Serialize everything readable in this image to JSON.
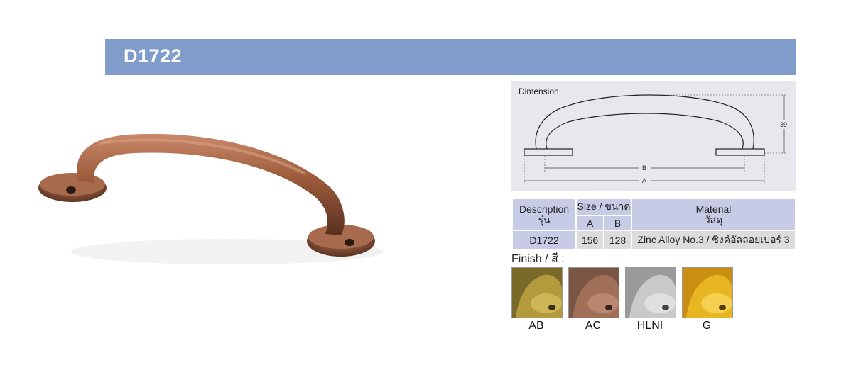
{
  "header": {
    "model": "D1722"
  },
  "dimension": {
    "label": "Dimension",
    "a_label": "A",
    "b_label": "B",
    "height_value": "39"
  },
  "table": {
    "description_header_en": "Description",
    "description_header_th": "รุ่น",
    "size_header": "Size / ขนาด",
    "col_a": "A",
    "col_b": "B",
    "material_header_en": "Material",
    "material_header_th": "วัสดุ",
    "rows": [
      {
        "model": "D1722",
        "a": "156",
        "b": "128",
        "material": "Zinc Alloy No.3 / ซิงค์อัลลอยเบอร์ 3"
      }
    ]
  },
  "finish": {
    "title": "Finish / สี :",
    "items": [
      {
        "code": "AB",
        "color": "#b39a3c"
      },
      {
        "code": "AC",
        "color": "#a06f58"
      },
      {
        "code": "HLNI",
        "color": "#c9c9c9"
      },
      {
        "code": "G",
        "color": "#e9b623"
      }
    ]
  },
  "colors": {
    "header_bar": "#7f9ccb",
    "table_header": "#c7cbe6",
    "table_cell": "#dcdcdc",
    "product": "#9a5a3a"
  }
}
